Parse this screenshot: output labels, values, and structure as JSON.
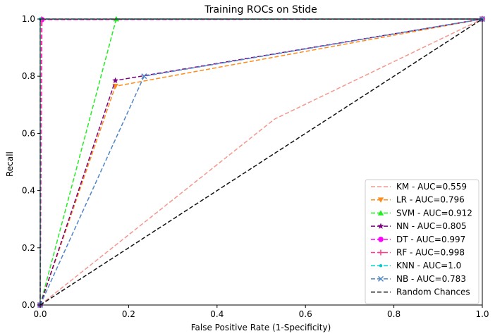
{
  "chart_data": {
    "type": "line",
    "title": "Training ROCs on Stide",
    "xlabel": "False Positive Rate (1-Specificity)",
    "ylabel": "Recall",
    "xlim": [
      0,
      1
    ],
    "ylim": [
      0,
      1
    ],
    "xticks": [
      "0.0",
      "0.2",
      "0.4",
      "0.6",
      "0.8",
      "1.0"
    ],
    "yticks": [
      "0.0",
      "0.2",
      "0.4",
      "0.6",
      "0.8",
      "1.0"
    ],
    "grid": false,
    "legend_position": "lower-right",
    "series": [
      {
        "name": "KM - AUC=0.559",
        "color": "#f4978e",
        "marker": "none",
        "x": [
          0,
          0.53,
          1
        ],
        "y": [
          0,
          0.65,
          1
        ]
      },
      {
        "name": "LR - AUC=0.796",
        "color": "#ff8c1a",
        "marker": "triangle-down",
        "x": [
          0,
          0.17,
          1
        ],
        "y": [
          0,
          0.765,
          1
        ]
      },
      {
        "name": "SVM - AUC=0.912",
        "color": "#22ee22",
        "marker": "triangle-up",
        "x": [
          0,
          0.172,
          1
        ],
        "y": [
          0,
          1.0,
          1
        ]
      },
      {
        "name": "NN - AUC=0.805",
        "color": "#7b0080",
        "marker": "star",
        "x": [
          0,
          0.17,
          1
        ],
        "y": [
          0,
          0.785,
          1
        ]
      },
      {
        "name": "DT - AUC=0.997",
        "color": "#ff00ff",
        "marker": "circle",
        "x": [
          0,
          0.004,
          1
        ],
        "y": [
          0,
          0.998,
          1
        ]
      },
      {
        "name": "RF - AUC=0.998",
        "color": "#ff3d8b",
        "marker": "plus",
        "x": [
          0,
          0.003,
          1
        ],
        "y": [
          0,
          0.999,
          1
        ]
      },
      {
        "name": "KNN - AUC=1.0",
        "color": "#00cccc",
        "marker": "dot",
        "x": [
          0,
          0.0,
          1
        ],
        "y": [
          0,
          1.0,
          1
        ]
      },
      {
        "name": "NB - AUC=0.783",
        "color": "#4f86c6",
        "marker": "x",
        "x": [
          0,
          0.235,
          1
        ],
        "y": [
          0,
          0.8,
          1
        ]
      },
      {
        "name": "Random Chances",
        "color": "#111111",
        "marker": "none",
        "x": [
          0,
          1
        ],
        "y": [
          0,
          1
        ]
      }
    ]
  }
}
